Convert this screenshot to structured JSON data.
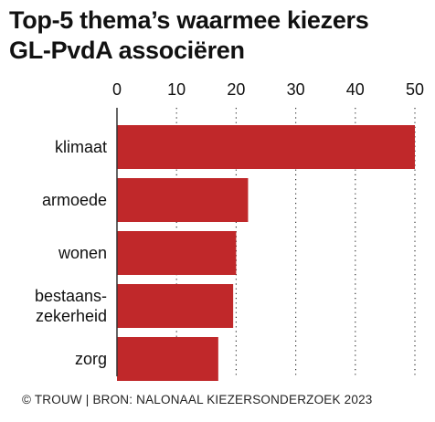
{
  "title_lines": [
    "Top-5 thema’s waarmee kiezers",
    "GL-PvdA associëren"
  ],
  "footer": "© TROUW | BRON: NALONAAL KIEZERSONDERZOEK 2023",
  "colors": {
    "bar": "#c0282a",
    "text": "#111111",
    "grid": "#333333"
  },
  "chart_data": {
    "type": "bar",
    "orientation": "horizontal",
    "title": "Top-5 thema’s waarmee kiezers GL-PvdA associëren",
    "categories": [
      [
        "klimaat"
      ],
      [
        "armoede"
      ],
      [
        "wonen"
      ],
      [
        "bestaans-",
        "zekerheid"
      ],
      [
        "zorg"
      ]
    ],
    "values": [
      50,
      22,
      20,
      19.5,
      17
    ],
    "xlim": [
      0,
      50
    ],
    "xticks": [
      0,
      10,
      20,
      30,
      40,
      50
    ],
    "tick_labels_position": "top",
    "grid": true,
    "grid_style": "dotted vertical"
  }
}
